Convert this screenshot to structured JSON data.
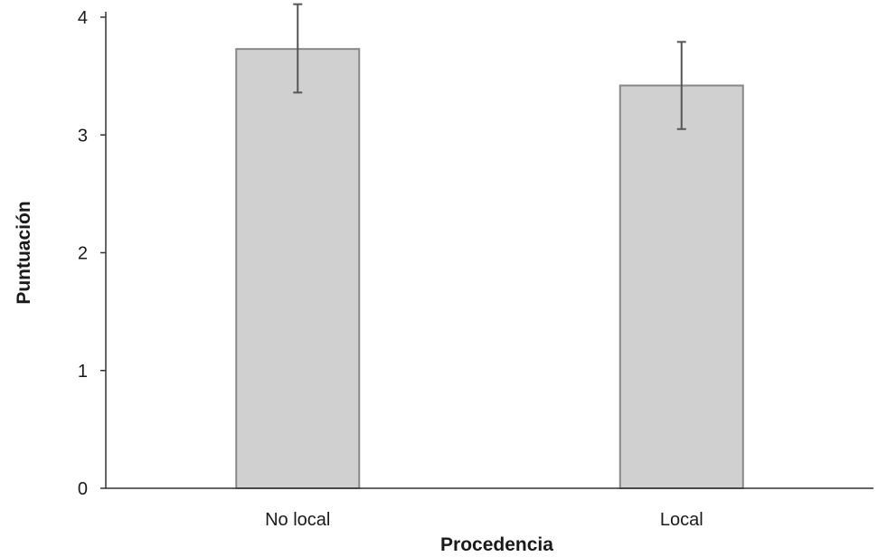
{
  "chart_data": {
    "type": "bar",
    "title": "",
    "xlabel": "Procedencia",
    "ylabel": "Puntuación",
    "categories": [
      "No local",
      "Local"
    ],
    "values": [
      3.73,
      3.42
    ],
    "error_low": [
      3.36,
      3.05
    ],
    "error_high": [
      4.11,
      3.79
    ],
    "ylim": [
      0,
      4
    ],
    "yticks": [
      "0",
      "1",
      "2",
      "3",
      "4"
    ],
    "grid": false,
    "legend": "none",
    "bar_color": "#d0d0d0",
    "bar_edge_color": "#888888",
    "error_color": "#555555",
    "axis_color": "#333333"
  }
}
